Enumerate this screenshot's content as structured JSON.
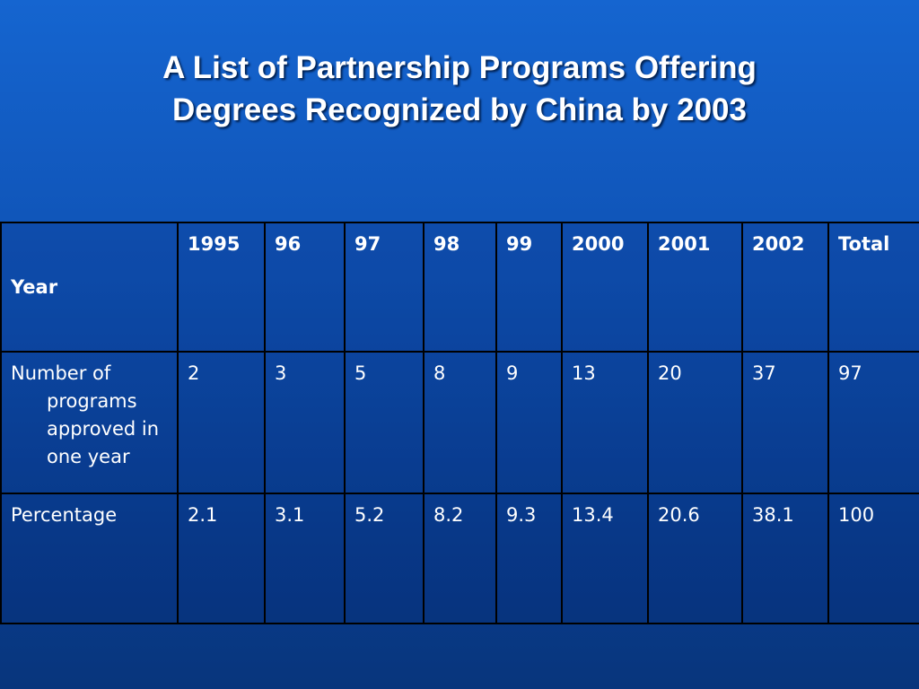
{
  "header": {
    "title": [
      "A List of Partnership Programs Offering",
      "Degrees Recognized by China by 2003"
    ]
  },
  "table": {
    "columns": [
      "Year",
      "1995",
      "96",
      "97",
      "98",
      "99",
      "2000",
      "2001",
      "2002",
      "Total"
    ],
    "rows": [
      [
        "Number of programs approved in one year",
        "2",
        "3",
        "5",
        "8",
        "9",
        "13",
        "20",
        "37",
        "97"
      ],
      [
        "Percentage",
        "2.1",
        "3.1",
        "5.2",
        "8.2",
        "9.3",
        "13.4",
        "20.6",
        "38.1",
        "100"
      ]
    ]
  }
}
